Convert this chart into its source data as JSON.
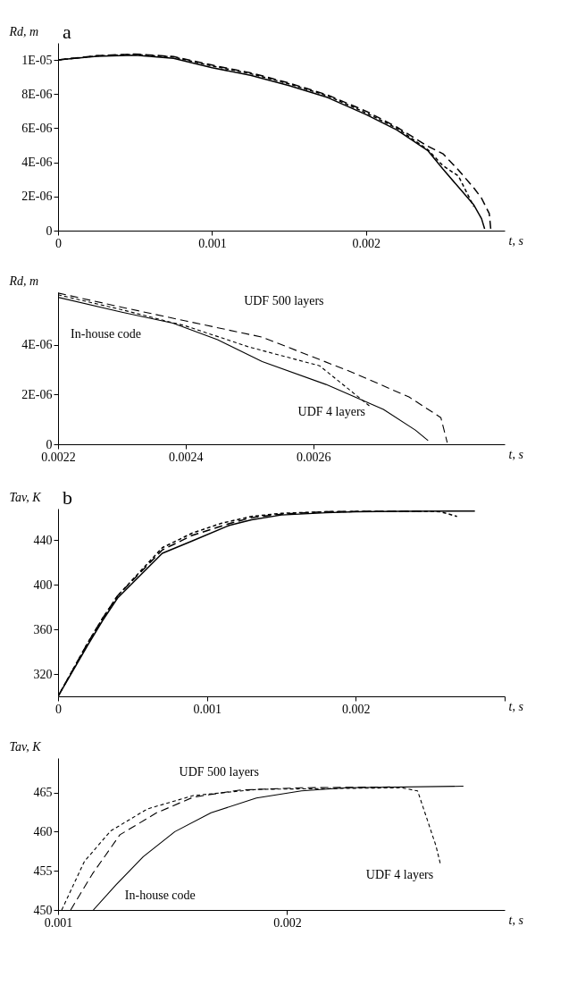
{
  "chart_data": [
    {
      "type": "line",
      "title": "a",
      "xlabel": "t, s",
      "ylabel": "Rd, m",
      "xlim": [
        0,
        0.0029
      ],
      "xticks": [
        0,
        0.001,
        0.002
      ],
      "ylim": [
        0,
        1.1e-05
      ],
      "yticks": [
        0,
        {
          "value": 2e-06,
          "label": "2E-06"
        },
        {
          "value": 4e-06,
          "label": "4E-06"
        },
        {
          "value": 6e-06,
          "label": "6E-06"
        },
        {
          "value": 8e-06,
          "label": "8E-06"
        },
        {
          "value": 1e-05,
          "label": "1E-05"
        }
      ],
      "grid": false,
      "series": [
        {
          "color": "#000000",
          "line_style": "solid",
          "x": [
            0,
            0.00025,
            0.0005,
            0.00075,
            0.001,
            0.00125,
            0.0015,
            0.00175,
            0.002,
            0.0022,
            0.0024,
            0.0025,
            0.0026,
            0.0027,
            0.00275,
            0.00277
          ],
          "values": [
            1e-05,
            1.022e-05,
            1.028e-05,
            1.01e-05,
            9.55e-06,
            9.1e-06,
            8.5e-06,
            7.8e-06,
            6.8e-06,
            5.9e-06,
            4.7e-06,
            3.6e-06,
            2.55e-06,
            1.5e-06,
            7e-07,
            1e-07
          ]
        },
        {
          "color": "#000000",
          "line_style": "dashed",
          "x": [
            0,
            0.00025,
            0.0005,
            0.00075,
            0.001,
            0.00125,
            0.0015,
            0.00175,
            0.002,
            0.0022,
            0.0024,
            0.0025,
            0.0026,
            0.0027,
            0.00275,
            0.0028,
            0.00281
          ],
          "values": [
            1e-05,
            1.025e-05,
            1.035e-05,
            1.02e-05,
            9.7e-06,
            9.25e-06,
            8.65e-06,
            7.95e-06,
            7e-06,
            6.07e-06,
            4.95e-06,
            4.5e-06,
            3.55e-06,
            2.5e-06,
            1.9e-06,
            1e-06,
            7e-08
          ]
        },
        {
          "color": "#000000",
          "line_style": "dashed",
          "x": [
            0,
            0.00025,
            0.0005,
            0.00075,
            0.001,
            0.00125,
            0.0015,
            0.00175,
            0.002,
            0.0022,
            0.0024,
            0.0025,
            0.0026,
            0.0027
          ],
          "values": [
            1e-05,
            1.024e-05,
            1.033e-05,
            1.017e-05,
            9.65e-06,
            9.2e-06,
            8.6e-06,
            7.9e-06,
            6.9e-06,
            6e-06,
            4.75e-06,
            3.8e-06,
            3.2e-06,
            1.4e-06
          ]
        }
      ]
    },
    {
      "type": "line",
      "xlabel": "t, s",
      "ylabel": "Rd, m",
      "xlim": [
        0.0022,
        0.0029
      ],
      "xticks": [
        0.0022,
        0.0024,
        0.0026
      ],
      "ylim": [
        0,
        6.1e-06
      ],
      "yticks": [
        0,
        {
          "value": 2e-06,
          "label": "2E-06"
        },
        {
          "value": 4e-06,
          "label": "4E-06"
        }
      ],
      "grid": false,
      "series": [
        {
          "name": "In-house code",
          "color": "#000000",
          "line_style": "solid",
          "x": [
            0.0022,
            0.0023,
            0.00238,
            0.00245,
            0.00252,
            0.00262,
            0.00271,
            0.00276,
            0.00278
          ],
          "values": [
            5.9e-06,
            5.3e-06,
            4.86e-06,
            4.2e-06,
            3.32e-06,
            2.4e-06,
            1.4e-06,
            5.7e-07,
            1.5e-07
          ]
        },
        {
          "name": "UDF 500 layers",
          "color": "#000000",
          "line_style": "dashed",
          "x": [
            0.0022,
            0.0023,
            0.0024,
            0.00252,
            0.00266,
            0.00275,
            0.0028,
            0.00281
          ],
          "values": [
            6.07e-06,
            5.5e-06,
            4.95e-06,
            4.3e-06,
            2.9e-06,
            1.9e-06,
            1.07e-06,
            7e-08
          ]
        },
        {
          "name": "UDF 4 layers",
          "color": "#000000",
          "line_style": "dashed",
          "x": [
            0.0022,
            0.0023,
            0.0024,
            0.0025,
            0.00261,
            0.00269
          ],
          "values": [
            6e-06,
            5.4e-06,
            4.75e-06,
            3.9e-06,
            3.15e-06,
            1.5e-06
          ]
        }
      ]
    },
    {
      "type": "line",
      "title": "b",
      "xlabel": "t, s",
      "ylabel": "Tav, K",
      "xlim": [
        0,
        0.003
      ],
      "xticks": [
        0,
        0.001,
        0.002,
        {
          "value": 0.003,
          "label": null
        }
      ],
      "ylim": [
        300,
        468
      ],
      "yticks": [
        320,
        360,
        400,
        440
      ],
      "grid": false,
      "series": [
        {
          "color": "#000000",
          "line_style": "solid",
          "x": [
            0,
            0.0001,
            0.0002,
            0.0003,
            0.0004,
            0.0007,
            0.0009,
            0.00115,
            0.0013,
            0.0015,
            0.0018,
            0.002,
            0.0023,
            0.0028
          ],
          "values": [
            300,
            323,
            346,
            368,
            388,
            428,
            439,
            453,
            458,
            462.3,
            464.3,
            465.2,
            465.6,
            465.8
          ]
        },
        {
          "color": "#000000",
          "line_style": "dashed",
          "x": [
            0,
            0.0001,
            0.0002,
            0.0003,
            0.0004,
            0.0007,
            0.0009,
            0.00115,
            0.0013,
            0.0015,
            0.0018,
            0.002,
            0.0023,
            0.00245
          ],
          "values": [
            300,
            324,
            348,
            370,
            390,
            431,
            444,
            454.6,
            460,
            463,
            465.3,
            465.5,
            465.7,
            465.8
          ]
        },
        {
          "color": "#000000",
          "line_style": "dashed",
          "x": [
            0,
            0.0001,
            0.0002,
            0.0003,
            0.0004,
            0.0007,
            0.0009,
            0.0011,
            0.0013,
            0.0015,
            0.0018,
            0.0025,
            0.00257,
            0.00268
          ],
          "values": [
            300,
            324,
            348,
            370,
            390,
            433,
            446,
            455,
            461,
            463.8,
            465.2,
            465.6,
            465.2,
            461
          ]
        }
      ]
    },
    {
      "type": "line",
      "xlabel": "t, s",
      "ylabel": "Tav, K",
      "xlim": [
        0.001,
        0.00295
      ],
      "xticks": [
        0.001,
        0.002
      ],
      "ylim": [
        450,
        469.4
      ],
      "yticks": [
        450,
        455,
        460,
        465
      ],
      "grid": false,
      "series": [
        {
          "name": "In-house code",
          "color": "#000000",
          "line_style": "solid",
          "x": [
            0.001154,
            0.001253,
            0.001372,
            0.00151,
            0.001668,
            0.001866,
            0.002063,
            0.00226,
            0.00277
          ],
          "values": [
            450,
            453.2,
            456.8,
            460,
            462.4,
            464.3,
            465.2,
            465.6,
            465.8
          ]
        },
        {
          "name": "UDF 500 layers",
          "color": "#000000",
          "line_style": "dashed",
          "x": [
            0.001055,
            0.00115,
            0.00127,
            0.00143,
            0.00159,
            0.00179,
            0.00206,
            0.00245
          ],
          "values": [
            450,
            454.6,
            459.6,
            462.4,
            464.4,
            465.3,
            465.6,
            465.7
          ]
        },
        {
          "name": "UDF 4 layers",
          "color": "#000000",
          "line_style": "dashed",
          "x": [
            0.001016,
            0.001115,
            0.00123,
            0.00139,
            0.00159,
            0.00187,
            0.0025,
            0.00257,
            0.00265,
            0.00267
          ],
          "values": [
            450,
            456.2,
            460.1,
            462.9,
            464.6,
            465.4,
            465.6,
            465.2,
            458.2,
            455.8
          ]
        }
      ]
    }
  ]
}
